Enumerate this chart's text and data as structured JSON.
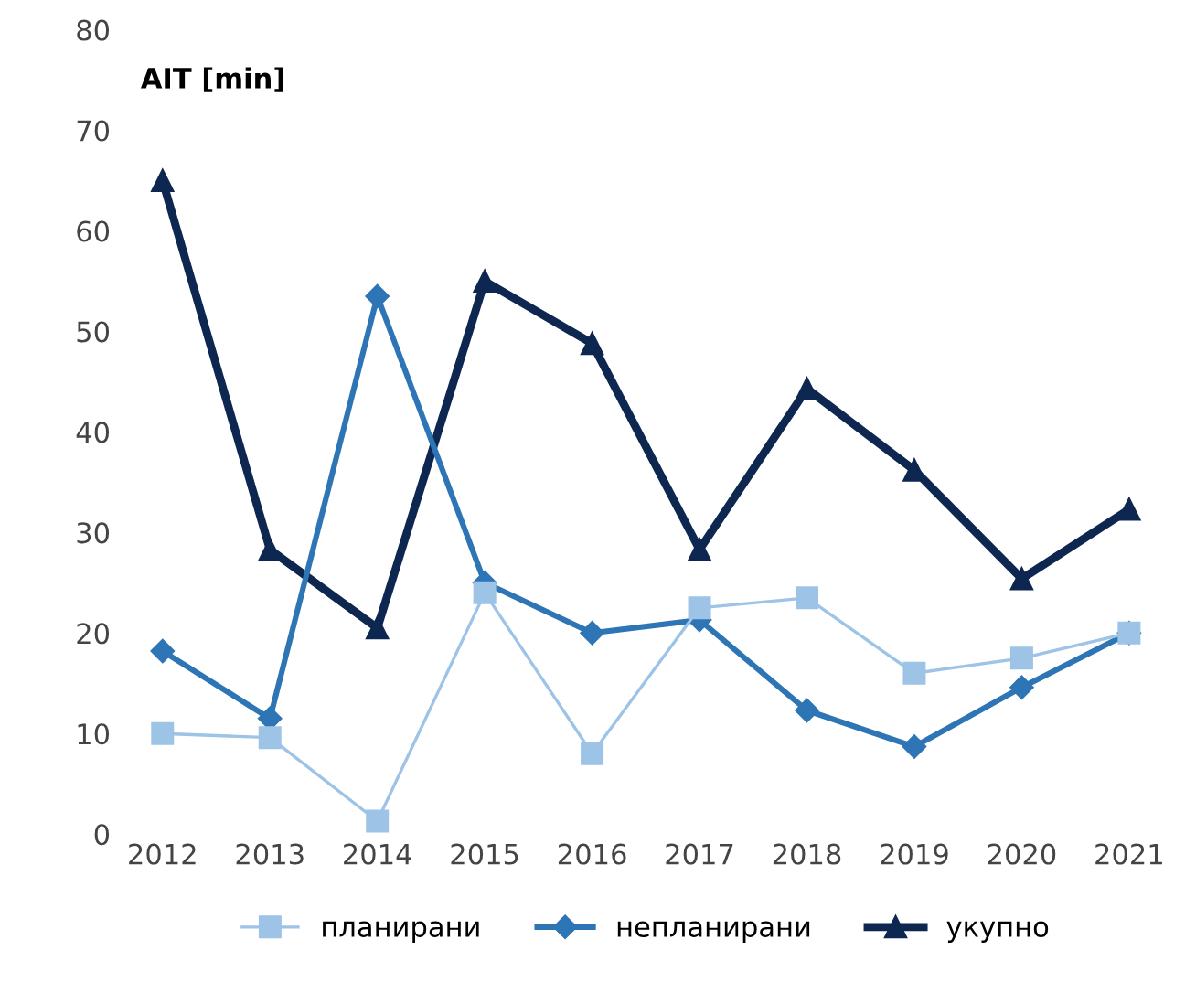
{
  "chart_data": {
    "type": "line",
    "ylabel": "AIT [min]",
    "categories": [
      "2012",
      "2013",
      "2014",
      "2015",
      "2016",
      "2017",
      "2018",
      "2019",
      "2020",
      "2021"
    ],
    "series": [
      {
        "name": "планирани",
        "color": "#9dc3e6",
        "marker": "square",
        "values": [
          10,
          9.6,
          1.3,
          24,
          8,
          22.5,
          23.5,
          16,
          17.5,
          20
        ]
      },
      {
        "name": "непланирани",
        "color": "#2e75b6",
        "marker": "diamond",
        "values": [
          18.2,
          11.5,
          53.5,
          25,
          20,
          21.3,
          12.3,
          8.7,
          14.6,
          20
        ]
      },
      {
        "name": "укупно",
        "color": "#0d2750",
        "marker": "triangle",
        "values": [
          65,
          28.3,
          20.5,
          55,
          48.8,
          28.3,
          44.3,
          36.2,
          25.4,
          32.3
        ]
      }
    ],
    "ylim": [
      0,
      80
    ],
    "yticks": [
      0,
      10,
      20,
      30,
      40,
      50,
      60,
      70,
      80
    ],
    "grid": false,
    "legend": "bottom"
  }
}
